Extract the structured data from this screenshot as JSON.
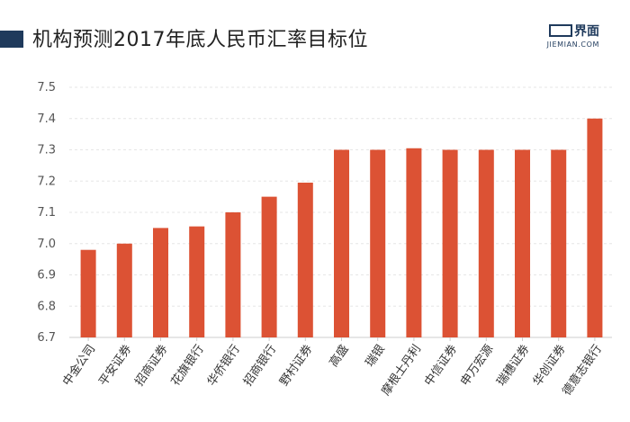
{
  "header": {
    "title": "机构预测2017年底人民币汇率目标位",
    "brand_cn": "界面",
    "brand_en": "JIEMIAN.COM"
  },
  "colors": {
    "bar": "#dc5234",
    "accent": "#1f3a5c",
    "grid": "#e6e6e6"
  },
  "chart_data": {
    "type": "bar",
    "title": "机构预测2017年底人民币汇率目标位",
    "categories": [
      "中金公司",
      "平安证券",
      "招商证券",
      "花旗银行",
      "华侨银行",
      "招商银行",
      "野村证券",
      "高盛",
      "瑞银",
      "摩根士丹利",
      "中信证券",
      "申万宏源",
      "瑞穗证券",
      "华创证券",
      "德意志银行"
    ],
    "values": [
      6.98,
      7.0,
      7.05,
      7.055,
      7.1,
      7.15,
      7.195,
      7.3,
      7.3,
      7.305,
      7.3,
      7.3,
      7.3,
      7.3,
      7.4
    ],
    "yticks": [
      "6.7",
      "6.8",
      "6.9",
      "7.0",
      "7.1",
      "7.2",
      "7.3",
      "7.4",
      "7.5"
    ],
    "ylim": [
      6.7,
      7.5
    ],
    "xlabel": "",
    "ylabel": "",
    "grid": "dashed horizontal",
    "legend": "none"
  }
}
